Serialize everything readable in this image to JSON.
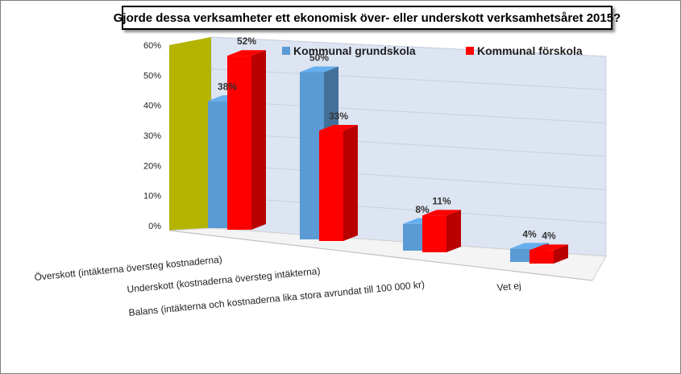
{
  "chart_data": {
    "type": "bar",
    "title": "Gjorde dessa verksamheter ett ekonomisk över- eller underskott verksamhetsåret 2015?",
    "categories": [
      "Överskott (intäkterna översteg kostnaderna)",
      "Underskott (kostnaderna översteg intäkterna)",
      "Balans (intäkterna och kostnaderna lika stora avrundat till 100 000 kr)",
      "Vet ej"
    ],
    "series": [
      {
        "name": "Kommunal grundskola",
        "values": [
          38,
          50,
          8,
          4
        ],
        "labels": [
          "38%",
          "50%",
          "8%",
          "4%"
        ],
        "color": "#5b9bd5"
      },
      {
        "name": "Kommunal förskola",
        "values": [
          52,
          33,
          11,
          4
        ],
        "labels": [
          "52%",
          "33%",
          "11%",
          "4%"
        ],
        "color": "#ff0000"
      }
    ],
    "yticks": [
      "0%",
      "10%",
      "20%",
      "30%",
      "40%",
      "50%",
      "60%"
    ],
    "ylim": [
      0,
      60
    ],
    "legend_position": "top",
    "grid": true
  }
}
